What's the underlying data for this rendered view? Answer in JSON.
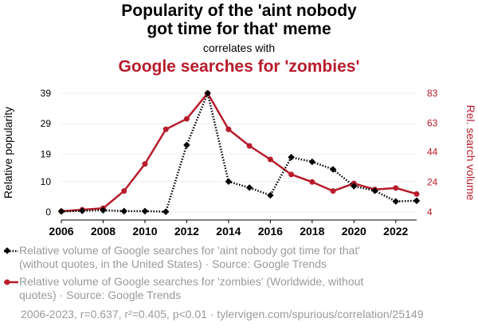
{
  "title": {
    "main_line1": "Popularity of the 'aint nobody",
    "main_line2": "got time for that' meme",
    "middle": "correlates with",
    "subtitle": "Google searches for 'zombies'"
  },
  "colors": {
    "series1": "#000000",
    "series2": "#b71c2b",
    "grid": "#eeeeee",
    "legend_text": "#9a9a9a"
  },
  "chart_data": {
    "type": "line",
    "x": [
      2006,
      2007,
      2008,
      2009,
      2010,
      2011,
      2012,
      2013,
      2014,
      2015,
      2016,
      2017,
      2018,
      2019,
      2020,
      2021,
      2022,
      2023
    ],
    "xticks": [
      2006,
      2008,
      2010,
      2012,
      2014,
      2016,
      2018,
      2020,
      2022
    ],
    "xlim": [
      2006,
      2023
    ],
    "ylabel_left": "Relative popularity",
    "ylabel_right": "Rel. search volume",
    "yticks_left": [
      0,
      10,
      19,
      29,
      39
    ],
    "ylim_left": [
      0,
      39
    ],
    "yticks_right": [
      4,
      24,
      44,
      63,
      83
    ],
    "ylim_right": [
      4,
      83
    ],
    "grid": true,
    "series": [
      {
        "name": "Relative volume of Google searches for 'aint nobody got time for that' (without quotes, in the United States) · Source: Google Trends",
        "axis": "left",
        "style": "dotted",
        "marker": "diamond",
        "values": [
          0.2,
          0.4,
          0.6,
          0.3,
          0.3,
          0.1,
          22,
          39,
          10,
          8,
          5.5,
          18,
          16.5,
          14,
          8.5,
          7,
          3.5,
          3.7
        ]
      },
      {
        "name": "Relative volume of Google searches for 'zombies' (Worldwide, without quotes) · Source: Google Trends",
        "axis": "right",
        "style": "solid",
        "marker": "circle",
        "values": [
          4.5,
          5.5,
          6.5,
          18,
          36,
          59,
          66,
          83,
          59,
          48,
          39,
          29,
          24,
          18,
          23,
          19,
          20,
          16
        ]
      }
    ]
  },
  "legend": {
    "entry1_line1": "Relative volume of Google searches for 'aint nobody got time for that'",
    "entry1_line2": "(without quotes, in the United States) · Source: Google Trends",
    "entry2_line1": "Relative volume of Google searches for 'zombies' (Worldwide, without",
    "entry2_line2": "quotes) · Source: Google Trends"
  },
  "footer": "2006-2023, r=0.637, r²=0.405, p<0.01 · tylervigen.com/spurious/correlation/25149"
}
